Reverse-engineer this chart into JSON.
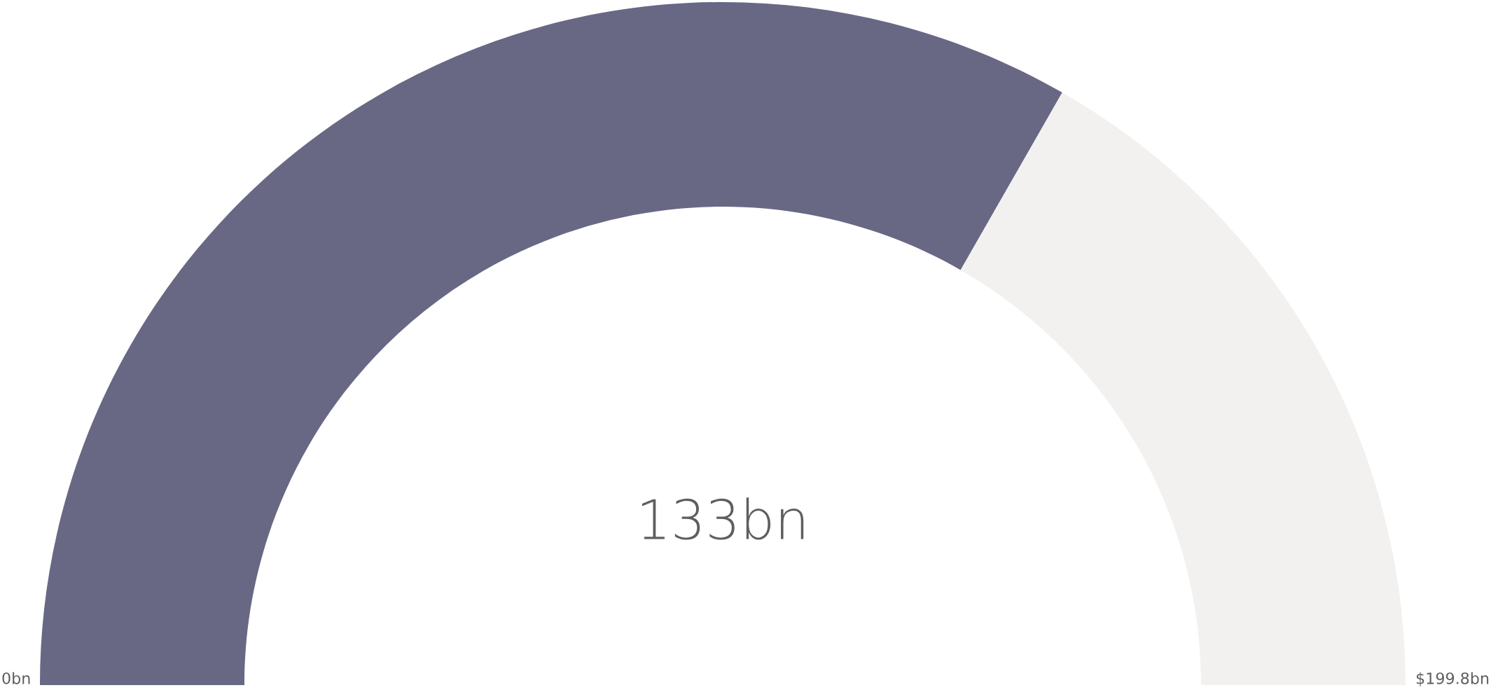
{
  "chart_data": {
    "type": "donut",
    "categories": [
      null,
      null
    ],
    "values": [
      133,
      66.8
    ],
    "colors": [
      "#686885",
      "#f2f1ef"
    ],
    "value_labels": [
      "133bn",
      null
    ],
    "annotations": [
      "0bn",
      "$199.8bn"
    ]
  }
}
